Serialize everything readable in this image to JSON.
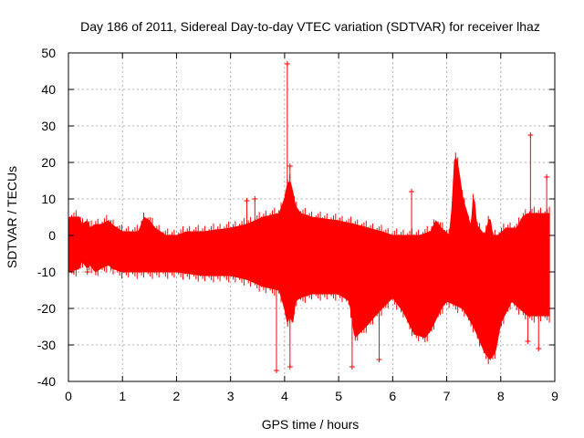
{
  "chart_data": {
    "type": "scatter",
    "title": "Day 186 of 2011, Sidereal Day-to-day VTEC variation (SDTVAR) for receiver lhaz",
    "xlabel": "GPS time / hours",
    "ylabel": "SDTVAR / TECUs",
    "xlim": [
      0,
      9
    ],
    "ylim": [
      -40,
      50
    ],
    "x_ticks": [
      "0",
      "1",
      "2",
      "3",
      "4",
      "5",
      "6",
      "7",
      "8",
      "9"
    ],
    "y_ticks": [
      "50",
      "40",
      "30",
      "20",
      "10",
      "0",
      "-10",
      "-20",
      "-30",
      "-40"
    ],
    "grid": true,
    "series_color": "#ff0000",
    "band_upper": {
      "x": [
        0,
        0.02,
        0.2,
        0.25,
        0.35,
        0.4,
        0.5,
        0.6,
        0.75,
        0.8,
        1.0,
        1.3,
        1.4,
        1.5,
        1.6,
        1.8,
        2.0,
        2.2,
        2.5,
        3.0,
        3.3,
        3.6,
        3.9,
        4.0,
        4.05,
        4.1,
        4.15,
        4.2,
        4.3,
        4.5,
        5.0,
        5.3,
        5.8,
        6.0,
        6.3,
        6.5,
        6.7,
        6.8,
        6.9,
        7.05,
        7.1,
        7.15,
        7.2,
        7.25,
        7.3,
        7.4,
        7.45,
        7.5,
        7.55,
        7.7,
        7.8,
        7.85,
        7.95,
        8.1,
        8.3,
        8.4,
        8.5,
        8.9
      ],
      "y": [
        4,
        5,
        5,
        3,
        4,
        2,
        3,
        3,
        4,
        3,
        1,
        1,
        5,
        4,
        2,
        0,
        0,
        1,
        1,
        2,
        3,
        5,
        6,
        10,
        14,
        15,
        12,
        8,
        6,
        5,
        4,
        3,
        1,
        0,
        0,
        0,
        1,
        4,
        2,
        0,
        8,
        22,
        20,
        15,
        10,
        5,
        2,
        12,
        3,
        0,
        5,
        0,
        0,
        2,
        2,
        5,
        6,
        6
      ]
    },
    "band_lower": {
      "x": [
        0,
        0.02,
        0.2,
        0.25,
        0.35,
        0.4,
        0.5,
        0.6,
        0.75,
        0.8,
        1.0,
        1.4,
        1.6,
        2.0,
        2.5,
        3.0,
        3.3,
        3.6,
        3.9,
        4.0,
        4.05,
        4.1,
        4.15,
        4.2,
        4.3,
        4.5,
        5.0,
        5.2,
        5.3,
        5.5,
        5.8,
        6.0,
        6.2,
        6.4,
        6.6,
        6.7,
        6.9,
        7.0,
        7.3,
        7.5,
        7.7,
        7.8,
        7.9,
        8.0,
        8.2,
        8.5,
        8.9
      ],
      "y": [
        -8,
        -10,
        -9,
        -7,
        -9,
        -8,
        -10,
        -9,
        -8,
        -9,
        -10,
        -10,
        -10,
        -10,
        -11,
        -11,
        -12,
        -14,
        -15,
        -20,
        -24,
        -22,
        -24,
        -18,
        -17,
        -16,
        -16,
        -18,
        -28,
        -25,
        -20,
        -17,
        -21,
        -27,
        -28,
        -26,
        -20,
        -18,
        -20,
        -25,
        -32,
        -34,
        -32,
        -24,
        -18,
        -22,
        -22
      ]
    },
    "markers": [
      {
        "x": 4.05,
        "y": 47
      },
      {
        "x": 3.85,
        "y": -37
      },
      {
        "x": 4.1,
        "y": -36
      },
      {
        "x": 5.25,
        "y": -36
      },
      {
        "x": 3.3,
        "y": 9.5
      },
      {
        "x": 3.45,
        "y": 10
      },
      {
        "x": 6.35,
        "y": 12
      },
      {
        "x": 8.55,
        "y": 27.5
      },
      {
        "x": 8.85,
        "y": 16
      },
      {
        "x": 8.5,
        "y": -29
      },
      {
        "x": 8.7,
        "y": -31
      },
      {
        "x": 0.35,
        "y": -10
      },
      {
        "x": 5.75,
        "y": -34
      },
      {
        "x": 4.1,
        "y": 19
      }
    ]
  }
}
